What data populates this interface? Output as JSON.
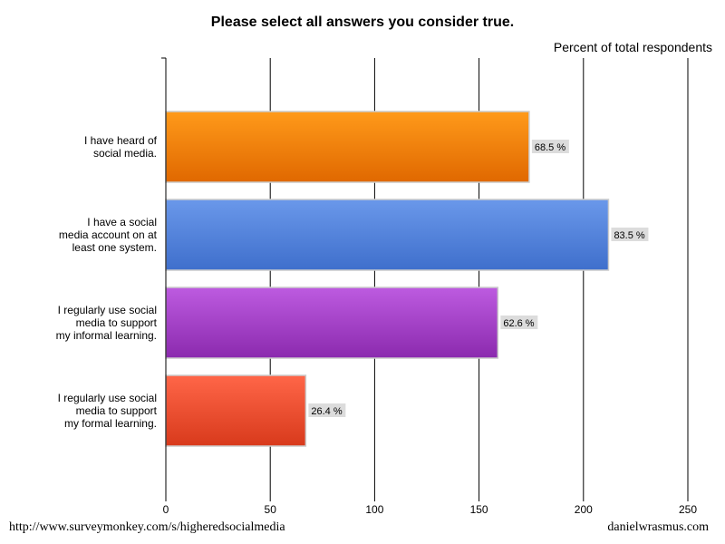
{
  "header": {
    "title": "Please select all answers you consider true.",
    "units": "Percent of total respondents"
  },
  "footer": {
    "source": "http://www.surveymonkey.com/s/higheredsocialmedia",
    "credit": "danielwrasmus.com"
  },
  "chart_data": {
    "type": "bar",
    "orientation": "horizontal",
    "categories": [
      [
        "I have heard of",
        "social media."
      ],
      [
        "I have a social",
        "media account on at",
        "least one system."
      ],
      [
        "I regularly use social",
        "media to support",
        "my informal learning."
      ],
      [
        "I regularly use social",
        "media to support",
        "my formal learning."
      ]
    ],
    "values": [
      174,
      212,
      159,
      67
    ],
    "data_labels": [
      "68.5 %",
      "83.5 %",
      "62.6 %",
      "26.4 %"
    ],
    "colors": [
      [
        "#ff9a1a",
        "#e06800"
      ],
      [
        "#6a98ea",
        "#3f6fcc"
      ],
      [
        "#bd5be0",
        "#8b2aae"
      ],
      [
        "#ff6648",
        "#d83a1c"
      ]
    ],
    "xlim": [
      0,
      250
    ],
    "xticks": [
      0,
      50,
      100,
      150,
      200,
      250
    ],
    "grid": true
  }
}
